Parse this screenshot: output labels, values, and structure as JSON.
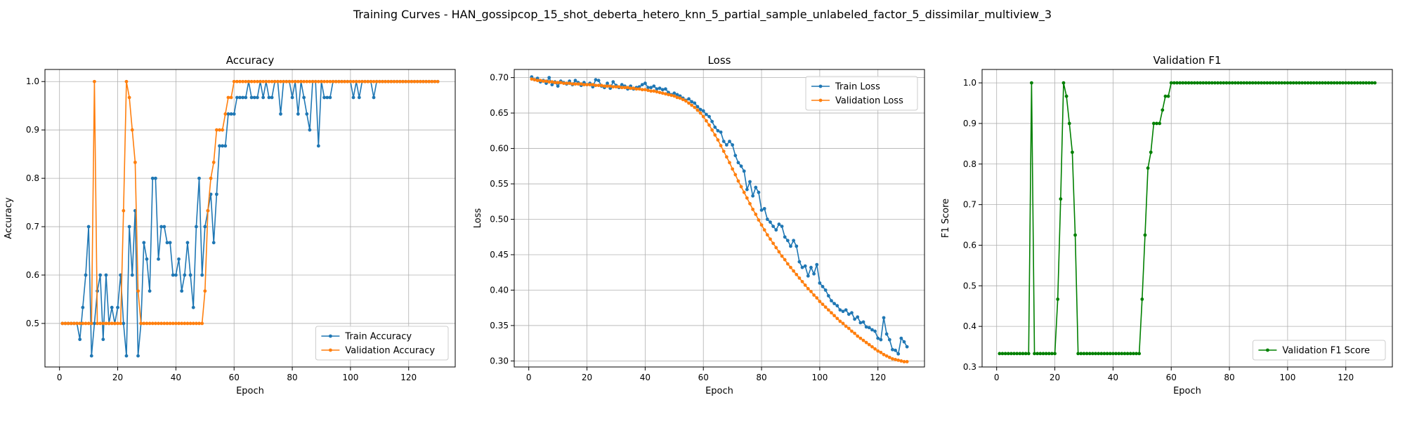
{
  "figure": {
    "suptitle": "Training Curves - HAN_gossipcop_15_shot_deberta_hetero_knn_5_partial_sample_unlabeled_factor_5_dissimilar_multiview_3"
  },
  "colors": {
    "blue": "#1f77b4",
    "orange": "#ff7f0e",
    "green": "#008000",
    "grid": "#b0b0b0"
  },
  "chart_data": [
    {
      "type": "line",
      "title": "Accuracy",
      "xlabel": "Epoch",
      "ylabel": "Accuracy",
      "xlim": [
        -5,
        136
      ],
      "ylim": [
        0.41,
        1.025
      ],
      "xticks": [
        0,
        20,
        40,
        60,
        80,
        100,
        120
      ],
      "yticks": [
        0.5,
        0.6,
        0.7,
        0.8,
        0.9,
        1.0
      ],
      "ytick_labels": [
        "0.5",
        "0.6",
        "0.7",
        "0.8",
        "0.9",
        "1.0"
      ],
      "grid": true,
      "legend": "lower right",
      "x": [
        1,
        2,
        3,
        4,
        5,
        6,
        7,
        8,
        9,
        10,
        11,
        12,
        13,
        14,
        15,
        16,
        17,
        18,
        19,
        20,
        21,
        22,
        23,
        24,
        25,
        26,
        27,
        28,
        29,
        30,
        31,
        32,
        33,
        34,
        35,
        36,
        37,
        38,
        39,
        40,
        41,
        42,
        43,
        44,
        45,
        46,
        47,
        48,
        49,
        50,
        51,
        52,
        53,
        54,
        55,
        56,
        57,
        58,
        59,
        60,
        61,
        62,
        63,
        64,
        65,
        66,
        67,
        68,
        69,
        70,
        71,
        72,
        73,
        74,
        75,
        76,
        77,
        78,
        79,
        80,
        81,
        82,
        83,
        84,
        85,
        86,
        87,
        88,
        89,
        90,
        91,
        92,
        93,
        94,
        95,
        96,
        97,
        98,
        99,
        100,
        101,
        102,
        103,
        104,
        105,
        106,
        107,
        108,
        109,
        110,
        111,
        112,
        113,
        114,
        115,
        116,
        117,
        118,
        119,
        120,
        121,
        122,
        123,
        124,
        125,
        126,
        127,
        128,
        129,
        130
      ],
      "series": [
        {
          "name": "Train Accuracy",
          "color": "#1f77b4",
          "values": [
            0.5,
            0.5,
            0.5,
            0.5,
            0.5,
            0.5,
            0.467,
            0.533,
            0.6,
            0.7,
            0.433,
            0.5,
            0.567,
            0.6,
            0.467,
            0.6,
            0.5,
            0.533,
            0.5,
            0.533,
            0.6,
            0.5,
            0.433,
            0.7,
            0.6,
            0.733,
            0.433,
            0.5,
            0.667,
            0.633,
            0.567,
            0.8,
            0.8,
            0.633,
            0.7,
            0.7,
            0.667,
            0.667,
            0.6,
            0.6,
            0.633,
            0.567,
            0.6,
            0.667,
            0.6,
            0.533,
            0.7,
            0.8,
            0.6,
            0.7,
            0.733,
            0.767,
            0.667,
            0.767,
            0.867,
            0.867,
            0.867,
            0.933,
            0.933,
            0.933,
            0.967,
            0.967,
            0.967,
            0.967,
            1.0,
            0.967,
            0.967,
            0.967,
            1.0,
            0.967,
            1.0,
            0.967,
            0.967,
            1.0,
            1.0,
            0.933,
            1.0,
            1.0,
            1.0,
            0.967,
            1.0,
            0.933,
            1.0,
            0.967,
            0.933,
            0.9,
            1.0,
            1.0,
            0.867,
            1.0,
            0.967,
            0.967,
            0.967,
            1.0,
            1.0,
            1.0,
            1.0,
            1.0,
            1.0,
            1.0,
            0.967,
            1.0,
            0.967,
            1.0,
            1.0,
            1.0,
            1.0,
            0.967,
            1.0,
            1.0,
            1.0,
            1.0,
            1.0,
            1.0,
            1.0,
            1.0,
            1.0,
            1.0,
            1.0,
            1.0,
            1.0,
            1.0,
            1.0,
            1.0,
            1.0,
            1.0,
            1.0,
            1.0,
            1.0,
            1.0
          ]
        },
        {
          "name": "Validation Accuracy",
          "color": "#ff7f0e",
          "values": [
            0.5,
            0.5,
            0.5,
            0.5,
            0.5,
            0.5,
            0.5,
            0.5,
            0.5,
            0.5,
            0.5,
            1.0,
            0.5,
            0.5,
            0.5,
            0.5,
            0.5,
            0.5,
            0.5,
            0.5,
            0.5,
            0.733,
            1.0,
            0.967,
            0.9,
            0.833,
            0.567,
            0.5,
            0.5,
            0.5,
            0.5,
            0.5,
            0.5,
            0.5,
            0.5,
            0.5,
            0.5,
            0.5,
            0.5,
            0.5,
            0.5,
            0.5,
            0.5,
            0.5,
            0.5,
            0.5,
            0.5,
            0.5,
            0.5,
            0.567,
            0.733,
            0.8,
            0.833,
            0.9,
            0.9,
            0.9,
            0.933,
            0.967,
            0.967,
            1.0,
            1.0,
            1.0,
            1.0,
            1.0,
            1.0,
            1.0,
            1.0,
            1.0,
            1.0,
            1.0,
            1.0,
            1.0,
            1.0,
            1.0,
            1.0,
            1.0,
            1.0,
            1.0,
            1.0,
            1.0,
            1.0,
            1.0,
            1.0,
            1.0,
            1.0,
            1.0,
            1.0,
            1.0,
            1.0,
            1.0,
            1.0,
            1.0,
            1.0,
            1.0,
            1.0,
            1.0,
            1.0,
            1.0,
            1.0,
            1.0,
            1.0,
            1.0,
            1.0,
            1.0,
            1.0,
            1.0,
            1.0,
            1.0,
            1.0,
            1.0,
            1.0,
            1.0,
            1.0,
            1.0,
            1.0,
            1.0,
            1.0,
            1.0,
            1.0,
            1.0,
            1.0,
            1.0,
            1.0,
            1.0,
            1.0,
            1.0,
            1.0,
            1.0,
            1.0,
            1.0
          ]
        }
      ]
    },
    {
      "type": "line",
      "title": "Loss",
      "xlabel": "Epoch",
      "ylabel": "Loss",
      "xlim": [
        -5,
        136
      ],
      "ylim": [
        0.2915,
        0.7115
      ],
      "xticks": [
        0,
        20,
        40,
        60,
        80,
        100,
        120
      ],
      "yticks": [
        0.3,
        0.35,
        0.4,
        0.45,
        0.5,
        0.55,
        0.6,
        0.65,
        0.7
      ],
      "ytick_labels": [
        "0.30",
        "0.35",
        "0.40",
        "0.45",
        "0.50",
        "0.55",
        "0.60",
        "0.65",
        "0.70"
      ],
      "grid": true,
      "legend": "upper right",
      "x": [
        1,
        2,
        3,
        4,
        5,
        6,
        7,
        8,
        9,
        10,
        11,
        12,
        13,
        14,
        15,
        16,
        17,
        18,
        19,
        20,
        21,
        22,
        23,
        24,
        25,
        26,
        27,
        28,
        29,
        30,
        31,
        32,
        33,
        34,
        35,
        36,
        37,
        38,
        39,
        40,
        41,
        42,
        43,
        44,
        45,
        46,
        47,
        48,
        49,
        50,
        51,
        52,
        53,
        54,
        55,
        56,
        57,
        58,
        59,
        60,
        61,
        62,
        63,
        64,
        65,
        66,
        67,
        68,
        69,
        70,
        71,
        72,
        73,
        74,
        75,
        76,
        77,
        78,
        79,
        80,
        81,
        82,
        83,
        84,
        85,
        86,
        87,
        88,
        89,
        90,
        91,
        92,
        93,
        94,
        95,
        96,
        97,
        98,
        99,
        100,
        101,
        102,
        103,
        104,
        105,
        106,
        107,
        108,
        109,
        110,
        111,
        112,
        113,
        114,
        115,
        116,
        117,
        118,
        119,
        120,
        121,
        122,
        123,
        124,
        125,
        126,
        127,
        128,
        129,
        130
      ],
      "series": [
        {
          "name": "Train Loss",
          "color": "#1f77b4",
          "values": [
            0.701,
            0.697,
            0.699,
            0.694,
            0.696,
            0.692,
            0.7,
            0.69,
            0.694,
            0.688,
            0.695,
            0.693,
            0.691,
            0.695,
            0.69,
            0.696,
            0.693,
            0.689,
            0.693,
            0.69,
            0.692,
            0.687,
            0.697,
            0.696,
            0.688,
            0.686,
            0.692,
            0.685,
            0.694,
            0.689,
            0.686,
            0.69,
            0.688,
            0.684,
            0.688,
            0.684,
            0.686,
            0.687,
            0.69,
            0.692,
            0.686,
            0.686,
            0.688,
            0.684,
            0.685,
            0.683,
            0.684,
            0.679,
            0.676,
            0.678,
            0.676,
            0.674,
            0.671,
            0.668,
            0.67,
            0.666,
            0.664,
            0.659,
            0.655,
            0.653,
            0.648,
            0.645,
            0.638,
            0.63,
            0.625,
            0.623,
            0.61,
            0.605,
            0.61,
            0.605,
            0.59,
            0.58,
            0.575,
            0.568,
            0.542,
            0.553,
            0.533,
            0.545,
            0.538,
            0.513,
            0.515,
            0.5,
            0.496,
            0.49,
            0.485,
            0.493,
            0.49,
            0.475,
            0.47,
            0.462,
            0.47,
            0.462,
            0.44,
            0.432,
            0.434,
            0.42,
            0.432,
            0.423,
            0.436,
            0.41,
            0.405,
            0.4,
            0.392,
            0.385,
            0.381,
            0.378,
            0.372,
            0.37,
            0.372,
            0.366,
            0.368,
            0.359,
            0.362,
            0.354,
            0.355,
            0.348,
            0.347,
            0.344,
            0.342,
            0.332,
            0.33,
            0.361,
            0.338,
            0.33,
            0.316,
            0.315,
            0.31,
            0.332,
            0.327,
            0.32
          ]
        },
        {
          "name": "Validation Loss",
          "color": "#ff7f0e",
          "values": [
            0.698,
            0.697,
            0.696,
            0.696,
            0.695,
            0.695,
            0.694,
            0.694,
            0.693,
            0.693,
            0.693,
            0.692,
            0.692,
            0.692,
            0.691,
            0.691,
            0.691,
            0.691,
            0.69,
            0.69,
            0.69,
            0.69,
            0.689,
            0.689,
            0.689,
            0.688,
            0.688,
            0.688,
            0.687,
            0.687,
            0.687,
            0.686,
            0.686,
            0.686,
            0.685,
            0.685,
            0.684,
            0.684,
            0.683,
            0.683,
            0.682,
            0.681,
            0.681,
            0.68,
            0.679,
            0.678,
            0.677,
            0.676,
            0.675,
            0.674,
            0.672,
            0.671,
            0.669,
            0.667,
            0.664,
            0.661,
            0.658,
            0.654,
            0.65,
            0.645,
            0.639,
            0.633,
            0.626,
            0.619,
            0.612,
            0.604,
            0.596,
            0.588,
            0.58,
            0.571,
            0.563,
            0.554,
            0.546,
            0.538,
            0.53,
            0.522,
            0.514,
            0.507,
            0.499,
            0.492,
            0.485,
            0.478,
            0.472,
            0.466,
            0.46,
            0.454,
            0.448,
            0.443,
            0.437,
            0.432,
            0.427,
            0.422,
            0.417,
            0.412,
            0.407,
            0.402,
            0.398,
            0.393,
            0.389,
            0.384,
            0.38,
            0.376,
            0.372,
            0.368,
            0.364,
            0.36,
            0.356,
            0.353,
            0.349,
            0.346,
            0.342,
            0.339,
            0.335,
            0.332,
            0.329,
            0.326,
            0.323,
            0.32,
            0.317,
            0.314,
            0.312,
            0.309,
            0.307,
            0.305,
            0.303,
            0.302,
            0.301,
            0.3,
            0.299,
            0.299
          ]
        }
      ]
    },
    {
      "type": "line",
      "title": "Validation F1",
      "xlabel": "Epoch",
      "ylabel": "F1 Score",
      "xlim": [
        -5,
        136
      ],
      "ylim": [
        0.3,
        1.033
      ],
      "xticks": [
        0,
        20,
        40,
        60,
        80,
        100,
        120
      ],
      "yticks": [
        0.3,
        0.4,
        0.5,
        0.6,
        0.7,
        0.8,
        0.9,
        1.0
      ],
      "ytick_labels": [
        "0.3",
        "0.4",
        "0.5",
        "0.6",
        "0.7",
        "0.8",
        "0.9",
        "1.0"
      ],
      "grid": true,
      "legend": "lower right",
      "x": [
        1,
        2,
        3,
        4,
        5,
        6,
        7,
        8,
        9,
        10,
        11,
        12,
        13,
        14,
        15,
        16,
        17,
        18,
        19,
        20,
        21,
        22,
        23,
        24,
        25,
        26,
        27,
        28,
        29,
        30,
        31,
        32,
        33,
        34,
        35,
        36,
        37,
        38,
        39,
        40,
        41,
        42,
        43,
        44,
        45,
        46,
        47,
        48,
        49,
        50,
        51,
        52,
        53,
        54,
        55,
        56,
        57,
        58,
        59,
        60,
        61,
        62,
        63,
        64,
        65,
        66,
        67,
        68,
        69,
        70,
        71,
        72,
        73,
        74,
        75,
        76,
        77,
        78,
        79,
        80,
        81,
        82,
        83,
        84,
        85,
        86,
        87,
        88,
        89,
        90,
        91,
        92,
        93,
        94,
        95,
        96,
        97,
        98,
        99,
        100,
        101,
        102,
        103,
        104,
        105,
        106,
        107,
        108,
        109,
        110,
        111,
        112,
        113,
        114,
        115,
        116,
        117,
        118,
        119,
        120,
        121,
        122,
        123,
        124,
        125,
        126,
        127,
        128,
        129,
        130
      ],
      "series": [
        {
          "name": "Validation F1 Score",
          "color": "#008000",
          "values": [
            0.333,
            0.333,
            0.333,
            0.333,
            0.333,
            0.333,
            0.333,
            0.333,
            0.333,
            0.333,
            0.333,
            1.0,
            0.333,
            0.333,
            0.333,
            0.333,
            0.333,
            0.333,
            0.333,
            0.333,
            0.467,
            0.714,
            1.0,
            0.967,
            0.9,
            0.829,
            0.625,
            0.333,
            0.333,
            0.333,
            0.333,
            0.333,
            0.333,
            0.333,
            0.333,
            0.333,
            0.333,
            0.333,
            0.333,
            0.333,
            0.333,
            0.333,
            0.333,
            0.333,
            0.333,
            0.333,
            0.333,
            0.333,
            0.333,
            0.467,
            0.625,
            0.79,
            0.829,
            0.9,
            0.9,
            0.9,
            0.933,
            0.967,
            0.967,
            1.0,
            1.0,
            1.0,
            1.0,
            1.0,
            1.0,
            1.0,
            1.0,
            1.0,
            1.0,
            1.0,
            1.0,
            1.0,
            1.0,
            1.0,
            1.0,
            1.0,
            1.0,
            1.0,
            1.0,
            1.0,
            1.0,
            1.0,
            1.0,
            1.0,
            1.0,
            1.0,
            1.0,
            1.0,
            1.0,
            1.0,
            1.0,
            1.0,
            1.0,
            1.0,
            1.0,
            1.0,
            1.0,
            1.0,
            1.0,
            1.0,
            1.0,
            1.0,
            1.0,
            1.0,
            1.0,
            1.0,
            1.0,
            1.0,
            1.0,
            1.0,
            1.0,
            1.0,
            1.0,
            1.0,
            1.0,
            1.0,
            1.0,
            1.0,
            1.0,
            1.0,
            1.0,
            1.0,
            1.0,
            1.0,
            1.0,
            1.0,
            1.0,
            1.0,
            1.0,
            1.0
          ]
        }
      ]
    }
  ]
}
